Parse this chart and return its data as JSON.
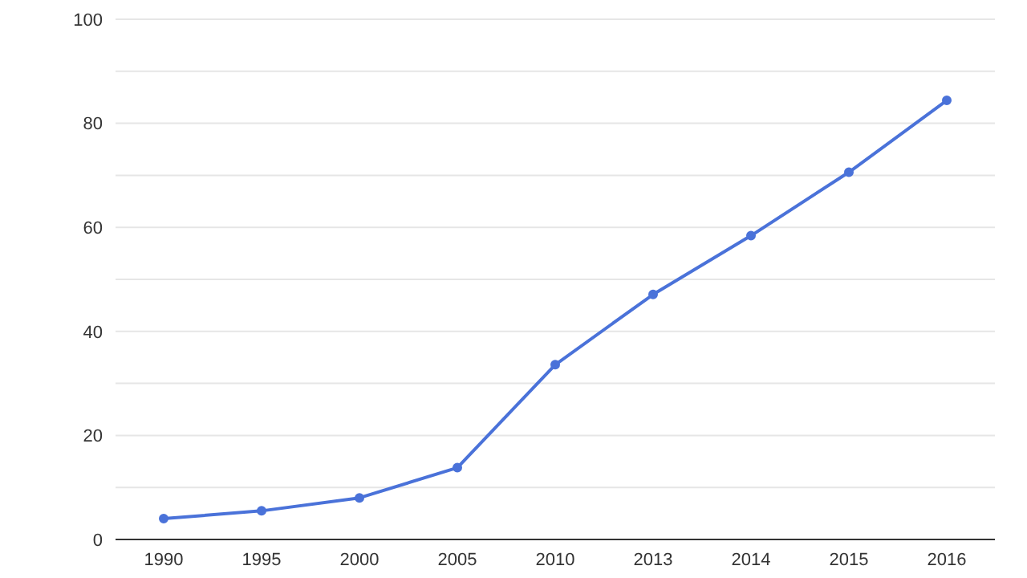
{
  "chart_data": {
    "type": "line",
    "categories": [
      "1990",
      "1995",
      "2000",
      "2005",
      "2010",
      "2013",
      "2014",
      "2015",
      "2016"
    ],
    "series": [
      {
        "color": "#4a72d9",
        "values": [
          4.0,
          5.5,
          8.0,
          13.8,
          33.6,
          47.1,
          58.4,
          70.6,
          84.4
        ]
      }
    ],
    "ylim": [
      0,
      100
    ],
    "yticks": [
      0,
      {
        "value": 10,
        "label": null
      },
      20,
      {
        "value": 30,
        "label": null
      },
      40,
      {
        "value": 50,
        "label": null
      },
      60,
      {
        "value": 70,
        "label": null
      },
      80,
      {
        "value": 90,
        "label": null
      },
      100
    ],
    "grid": "y",
    "marker": "circle",
    "line_style": "solid"
  }
}
